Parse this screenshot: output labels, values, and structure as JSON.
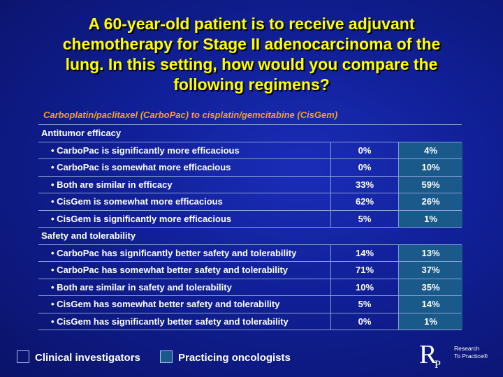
{
  "title_lines": [
    "A 60-year-old patient is to receive adjuvant",
    "chemotherapy for Stage II adenocarcinoma of the",
    "lung. In this setting, how would you compare the",
    "following regimens?"
  ],
  "subtitle": "Carboplatin/paclitaxel (CarboPac) to cisplatin/gemcitabine (CisGem)",
  "rows": [
    {
      "label": "Antitumor efficacy",
      "type": "section"
    },
    {
      "label": "• CarboPac is significantly more efficacious",
      "type": "item",
      "c1": "0%",
      "c2": "4%"
    },
    {
      "label": "• CarboPac is somewhat more efficacious",
      "type": "item",
      "c1": "0%",
      "c2": "10%"
    },
    {
      "label": "• Both are similar in efficacy",
      "type": "item",
      "c1": "33%",
      "c2": "59%"
    },
    {
      "label": "• CisGem is somewhat more efficacious",
      "type": "item",
      "c1": "62%",
      "c2": "26%"
    },
    {
      "label": "• CisGem is significantly more efficacious",
      "type": "item",
      "c1": "5%",
      "c2": "1%"
    },
    {
      "label": "Safety and tolerability",
      "type": "section"
    },
    {
      "label": "• CarboPac has significantly better safety and tolerability",
      "type": "item",
      "c1": "14%",
      "c2": "13%"
    },
    {
      "label": "• CarboPac has somewhat better safety and tolerability",
      "type": "item",
      "c1": "71%",
      "c2": "37%"
    },
    {
      "label": "• Both are similar in safety and tolerability",
      "type": "item",
      "c1": "10%",
      "c2": "35%"
    },
    {
      "label": "• CisGem has somewhat better safety and tolerability",
      "type": "item",
      "c1": "5%",
      "c2": "14%"
    },
    {
      "label": "• CisGem has significantly better safety and tolerability",
      "type": "item",
      "c1": "0%",
      "c2": "1%"
    }
  ],
  "legend": {
    "clinical": "Clinical investigators",
    "practicing": "Practicing oncologists",
    "practicing_color": "#1a5a8a"
  },
  "logo": {
    "letter_r": "R",
    "letter_p": "P",
    "line1": "Research",
    "line2": "To Practice®"
  }
}
